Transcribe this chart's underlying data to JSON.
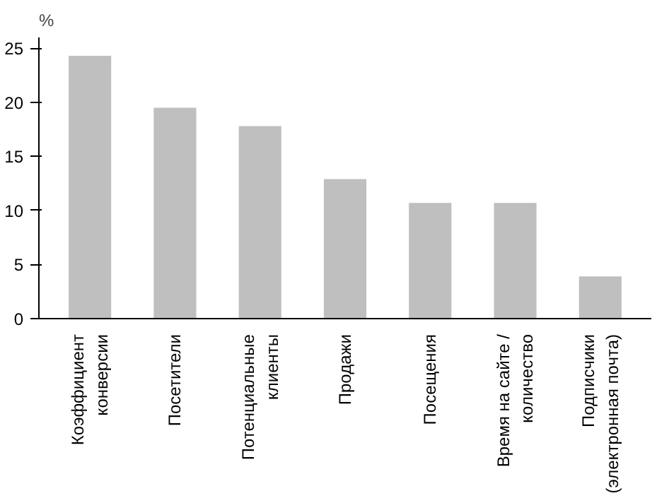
{
  "chart_data": {
    "type": "bar",
    "ylabel": "%",
    "categories": [
      "Коэффициент\nконверсии",
      "Посетители",
      "Потенциальные\nклиенты",
      "Продажи",
      "Посещения",
      "Время на сайте /\nколичество",
      "Подписчики\n(электронная почта)"
    ],
    "values": [
      24.3,
      19.5,
      17.8,
      12.9,
      10.7,
      10.7,
      3.9
    ],
    "color": "#bfbfbf",
    "ylim": [
      0,
      26
    ],
    "yticks": [
      0,
      5,
      10,
      15,
      20,
      25
    ],
    "grid": false
  }
}
